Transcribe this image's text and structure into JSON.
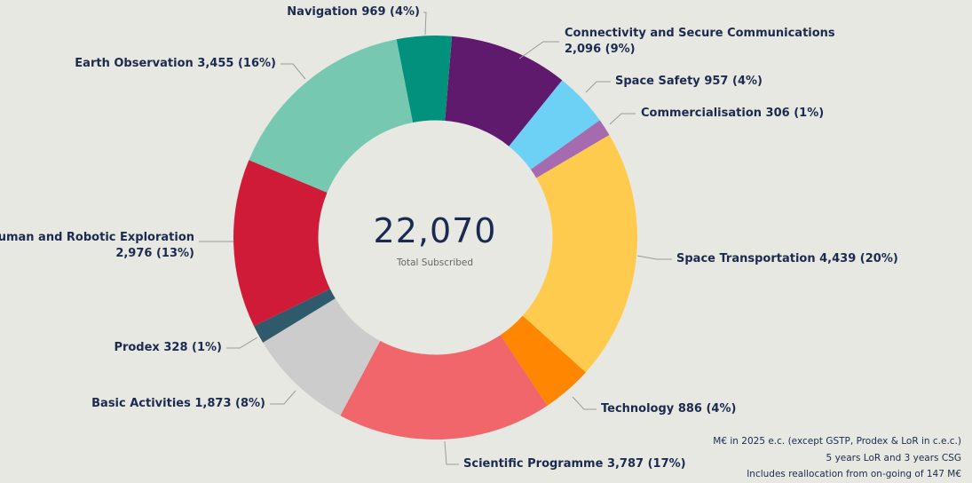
{
  "chart_data": {
    "type": "pie",
    "variant": "donut",
    "center": {
      "value": "22,070",
      "label": "Total Subscribed"
    },
    "slices": [
      {
        "name": "Connectivity and Secure Communications",
        "value": 2096,
        "value_text": "2,096",
        "pct": "9%",
        "color": "#5F1A6E"
      },
      {
        "name": "Space Safety",
        "value": 957,
        "value_text": "957",
        "pct": "4%",
        "color": "#6DD0F5"
      },
      {
        "name": "Commercialisation",
        "value": 306,
        "value_text": "306",
        "pct": "1%",
        "color": "#A56BAE"
      },
      {
        "name": "Space Transportation",
        "value": 4439,
        "value_text": "4,439",
        "pct": "20%",
        "color": "#FFCB4F"
      },
      {
        "name": "Technology",
        "value": 886,
        "value_text": "886",
        "pct": "4%",
        "color": "#FF8600"
      },
      {
        "name": "Scientific Programme",
        "value": 3787,
        "value_text": "3,787",
        "pct": "17%",
        "color": "#F0666B"
      },
      {
        "name": "Basic Activities",
        "value": 1873,
        "value_text": "1,873",
        "pct": "8%",
        "color": "#CCCCCC"
      },
      {
        "name": "Prodex",
        "value": 328,
        "value_text": "328",
        "pct": "1%",
        "color": "#2E5A6B"
      },
      {
        "name": "Human and Robotic Exploration",
        "value": 2976,
        "value_text": "2,976",
        "pct": "13%",
        "color": "#D01B38"
      },
      {
        "name": "Earth Observation",
        "value": 3455,
        "value_text": "3,455",
        "pct": "16%",
        "color": "#76C9B0"
      },
      {
        "name": "Navigation",
        "value": 969,
        "value_text": "969",
        "pct": "4%",
        "color": "#01917D"
      }
    ]
  },
  "notes": [
    "M€ in 2025 e.c. (except GSTP, Prodex & LoR in c.e.c.)",
    "5 years LoR and 3 years CSG",
    "Includes reallocation from on-going of 147 M€"
  ]
}
